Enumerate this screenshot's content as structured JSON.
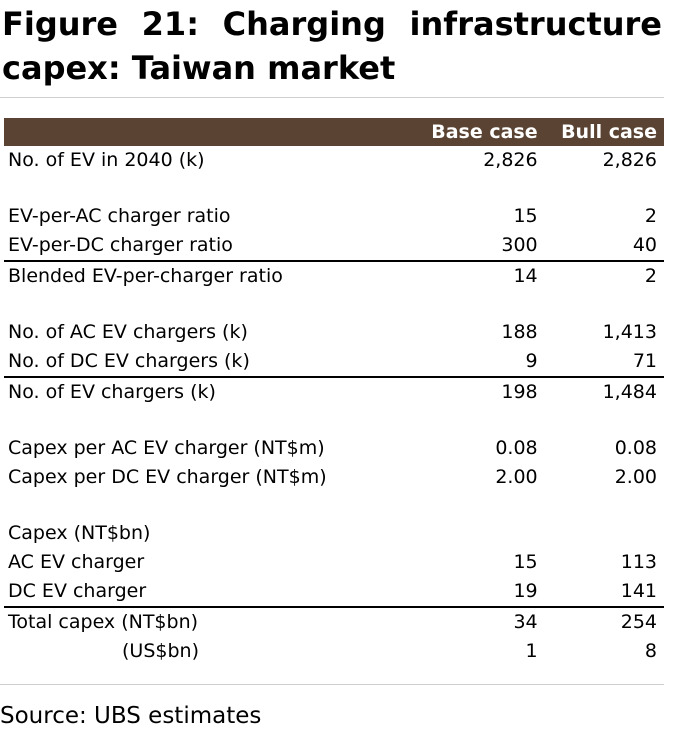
{
  "title": "Figure 21: Charging infrastructure capex: Taiwan market",
  "table": {
    "columns": [
      "",
      "Base case",
      "Bull case"
    ],
    "rows": [
      {
        "label": "No. of EV in 2040 (k)",
        "base": "2,826",
        "bull": "2,826"
      },
      {
        "label": "EV-per-AC charger ratio",
        "base": "15",
        "bull": "2"
      },
      {
        "label": "EV-per-DC charger ratio",
        "base": "300",
        "bull": "40"
      },
      {
        "label": "Blended EV-per-charger ratio",
        "base": "14",
        "bull": "2"
      },
      {
        "label": "No. of AC EV chargers (k)",
        "base": "188",
        "bull": "1,413"
      },
      {
        "label": "No. of DC EV chargers (k)",
        "base": "9",
        "bull": "71"
      },
      {
        "label": "No. of EV chargers (k)",
        "base": "198",
        "bull": "1,484"
      },
      {
        "label": "Capex per AC EV charger (NT$m)",
        "base": "0.08",
        "bull": "0.08"
      },
      {
        "label": "Capex per DC EV charger (NT$m)",
        "base": "2.00",
        "bull": "2.00"
      },
      {
        "label": "Capex (NT$bn)",
        "base": "",
        "bull": ""
      },
      {
        "label": "AC EV charger",
        "base": "15",
        "bull": "113"
      },
      {
        "label": "DC EV charger",
        "base": "19",
        "bull": "141"
      },
      {
        "label": "Total capex (NT$bn)",
        "base": "34",
        "bull": "254"
      },
      {
        "label": "(US$bn)",
        "base": "1",
        "bull": "8"
      }
    ]
  },
  "source": "Source: UBS estimates"
}
